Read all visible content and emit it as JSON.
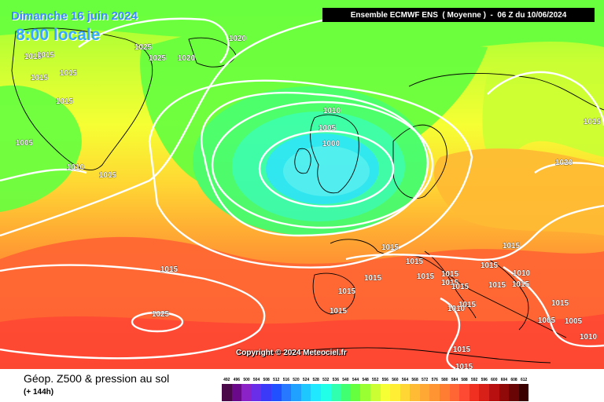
{
  "header": {
    "date": "Dimanche 16 juin 2024",
    "local_time": "8:00 locale",
    "model_run": "Ensemble ECMWF ENS  ( Moyenne )  -  06 Z du 10/06/2024"
  },
  "copyright": "Copyright © 2024 Meteociel.fr",
  "footer": {
    "title": "Géop. Z500 & pression au sol",
    "lead": "(+ 144h)"
  },
  "map": {
    "ocean_color": "#b9d8f0",
    "isobar_color": "#ffffff",
    "coast_color": "#000000",
    "low_center_label": "1000",
    "isobar_labels": [
      "1020",
      "1025",
      "1025",
      "1020",
      "1015",
      "1015",
      "1015",
      "1015",
      "1015",
      "1005",
      "1010",
      "1015",
      "1010",
      "1005",
      "1000",
      "1015",
      "1020",
      "1015",
      "1015",
      "1015",
      "1015",
      "1015",
      "1015",
      "1015",
      "1015",
      "1015",
      "1015",
      "1010",
      "1015",
      "1015",
      "1015",
      "1015",
      "1010",
      "1015",
      "1015",
      "1005",
      "1005",
      "1010",
      "1010",
      "1020",
      "1025",
      "1015",
      "1015"
    ]
  },
  "legend": {
    "values": [
      "492",
      "496",
      "500",
      "504",
      "508",
      "512",
      "516",
      "520",
      "524",
      "528",
      "532",
      "536",
      "540",
      "544",
      "548",
      "552",
      "556",
      "560",
      "564",
      "568",
      "572",
      "576",
      "580",
      "584",
      "588",
      "592",
      "596",
      "600",
      "604",
      "608",
      "612"
    ],
    "colors": [
      "#4a0a4a",
      "#6a0a8a",
      "#8a22c8",
      "#6a2ee8",
      "#3a3af8",
      "#2050ff",
      "#2878ff",
      "#20a0ff",
      "#1ec8ff",
      "#20e8ff",
      "#22ffe8",
      "#30ffb0",
      "#40ff70",
      "#66ff40",
      "#99ff33",
      "#ccff33",
      "#f6ff33",
      "#ffee33",
      "#ffd633",
      "#ffbb33",
      "#ffa833",
      "#ff9433",
      "#ff7d33",
      "#ff6633",
      "#ff4a33",
      "#f03020",
      "#d82018",
      "#b81010",
      "#900a0a",
      "#6a0505",
      "#3a0000"
    ]
  }
}
